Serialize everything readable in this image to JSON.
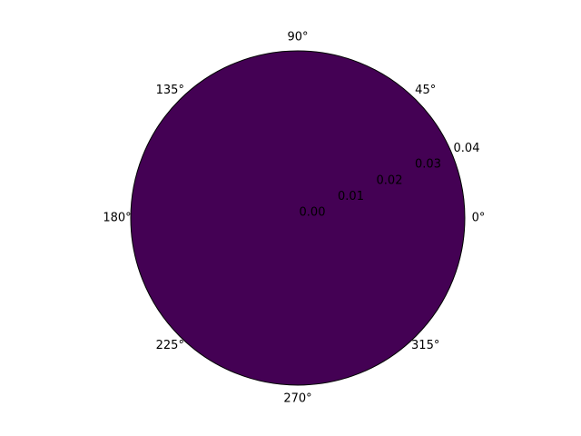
{
  "chart_data": {
    "type": "heatmap",
    "projection": "polar",
    "theta_ticks": [
      "0°",
      "45°",
      "90°",
      "135°",
      "180°",
      "225°",
      "270°",
      "315°"
    ],
    "theta_tick_values": [
      0,
      45,
      90,
      135,
      180,
      225,
      270,
      315
    ],
    "r_ticks": [
      "0.00",
      "0.01",
      "0.02",
      "0.03",
      "0.04"
    ],
    "r_tick_values": [
      0.0,
      0.01,
      0.02,
      0.03,
      0.04
    ],
    "rlim": [
      0,
      0.04
    ],
    "rlabel_angle": 22.5,
    "grid": false,
    "values": [
      [
        0
      ]
    ],
    "fill_color": "#440154",
    "edge_color": "#000000"
  }
}
